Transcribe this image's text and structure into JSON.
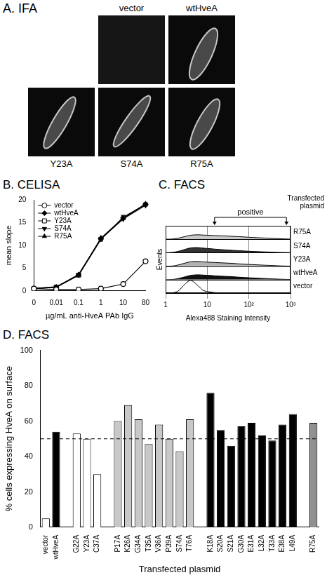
{
  "figure_a": {
    "title": "A. IFA",
    "images": [
      "vector",
      "wtHveA",
      "Y23A",
      "S74A",
      "R75A"
    ]
  },
  "chart_data": [
    {
      "type": "line",
      "title": "B. CELISA",
      "categories": [
        "0",
        "0.01",
        "0.1",
        "1",
        "10",
        "80"
      ],
      "xlabel": "µg/mL anti-HveA PAb IgG",
      "ylabel": "mean slope",
      "ylim": [
        0,
        20
      ],
      "yticks": [
        0,
        5,
        10,
        15,
        20
      ],
      "grid": false,
      "legend": "top-left",
      "series": [
        {
          "name": "vector",
          "color": "#000000",
          "marker": "circle-open",
          "values": [
            0.5,
            0.3,
            0.3,
            0.5,
            1.5,
            6.5
          ]
        },
        {
          "name": "wtHveA",
          "color": "#000000",
          "marker": "diamond",
          "values": [
            0.5,
            0.8,
            3.5,
            11.5,
            16,
            19
          ]
        },
        {
          "name": "Y23A",
          "color": "#000000",
          "marker": "square-open",
          "values": [
            0.5,
            0.8,
            3.4,
            11.3,
            16.2,
            19
          ]
        },
        {
          "name": "S74A",
          "color": "#000000",
          "marker": "triangle-down",
          "values": [
            0.5,
            0.9,
            3.6,
            11.4,
            15.8,
            18.8
          ]
        },
        {
          "name": "R75A",
          "color": "#000000",
          "marker": "triangle-up",
          "values": [
            0.6,
            0.8,
            3.5,
            11.6,
            16,
            19.1
          ]
        }
      ]
    },
    {
      "type": "area",
      "title": "C. FACS",
      "x": [
        1,
        1.5,
        2,
        3,
        4,
        6,
        8,
        12,
        16,
        25,
        40,
        60,
        100,
        160,
        250,
        400,
        630,
        1000
      ],
      "xlim": [
        1,
        1000
      ],
      "xticks": [
        1,
        10,
        {
          "value": 100,
          "label": "10²"
        },
        {
          "value": 1000,
          "label": "10³"
        }
      ],
      "log": "x",
      "xlabel": "Alexa488 Staining Intensity",
      "ylabel": "Events",
      "ylim": [
        0,
        100
      ],
      "grid": true,
      "tick_labels": "x",
      "legend_title": "Transfected plasmid",
      "annotations": [
        {
          "text": "positive",
          "x_range": [
            15,
            800
          ]
        }
      ],
      "series": [
        {
          "name": "vector",
          "color": "#ffffff",
          "values": [
            0,
            3,
            15,
            70,
            95,
            55,
            20,
            8,
            3,
            1,
            0,
            0,
            0,
            0,
            0,
            0,
            0,
            0
          ]
        },
        {
          "name": "wtHveA",
          "color": "#111111",
          "values": [
            0,
            2,
            8,
            22,
            32,
            36,
            34,
            31,
            28,
            25,
            22,
            18,
            14,
            11,
            8,
            5,
            3,
            1
          ]
        },
        {
          "name": "Y23A",
          "color": "#b0b0b0",
          "values": [
            0,
            2,
            9,
            24,
            33,
            35,
            32,
            29,
            27,
            24,
            21,
            17,
            13,
            10,
            7,
            5,
            2,
            1
          ]
        },
        {
          "name": "S74A",
          "color": "#333333",
          "values": [
            0,
            3,
            10,
            26,
            36,
            38,
            34,
            30,
            26,
            22,
            18,
            15,
            11,
            8,
            6,
            4,
            2,
            1
          ]
        },
        {
          "name": "R75A",
          "color": "#c8c8c8",
          "values": [
            0,
            2,
            8,
            21,
            30,
            33,
            31,
            29,
            27,
            25,
            22,
            19,
            15,
            12,
            9,
            6,
            3,
            1
          ]
        }
      ]
    },
    {
      "type": "bar",
      "title": "D. FACS",
      "categories": [
        "vector",
        "wtHveA",
        null,
        "G22A",
        "Y23A",
        "C37A",
        null,
        "P17A",
        "K26A",
        "G34A",
        "T35A",
        "V36A",
        "P39A",
        "S74A",
        "T76A",
        null,
        "K18A",
        "S20A",
        "S21A",
        "G30A",
        "E31A",
        "L32A",
        "T33A",
        "E38A",
        "L49A",
        null,
        "R75A"
      ],
      "values": [
        5,
        54,
        null,
        53,
        50,
        30,
        null,
        60,
        69,
        61,
        47,
        58,
        50,
        43,
        61,
        null,
        76,
        55,
        46,
        57,
        59,
        52,
        49,
        58,
        64,
        null,
        59
      ],
      "colors": [
        "#ffffff",
        "#000000",
        null,
        "#ffffff",
        "#ffffff",
        "#ffffff",
        null,
        "#c8c8c8",
        "#c8c8c8",
        "#c8c8c8",
        "#c8c8c8",
        "#c8c8c8",
        "#c8c8c8",
        "#c8c8c8",
        "#c8c8c8",
        null,
        "#000000",
        "#000000",
        "#000000",
        "#000000",
        "#000000",
        "#000000",
        "#000000",
        "#000000",
        "#000000",
        null,
        "#909090"
      ],
      "xlabel": "Transfected plasmid",
      "ylabel": "% cells expressing HveA on surface",
      "ylim": [
        0,
        100
      ],
      "yticks": [
        0,
        20,
        40,
        60,
        80,
        100
      ],
      "grid": false,
      "reference_line": {
        "value": 50,
        "line_style": "dashed"
      }
    }
  ]
}
